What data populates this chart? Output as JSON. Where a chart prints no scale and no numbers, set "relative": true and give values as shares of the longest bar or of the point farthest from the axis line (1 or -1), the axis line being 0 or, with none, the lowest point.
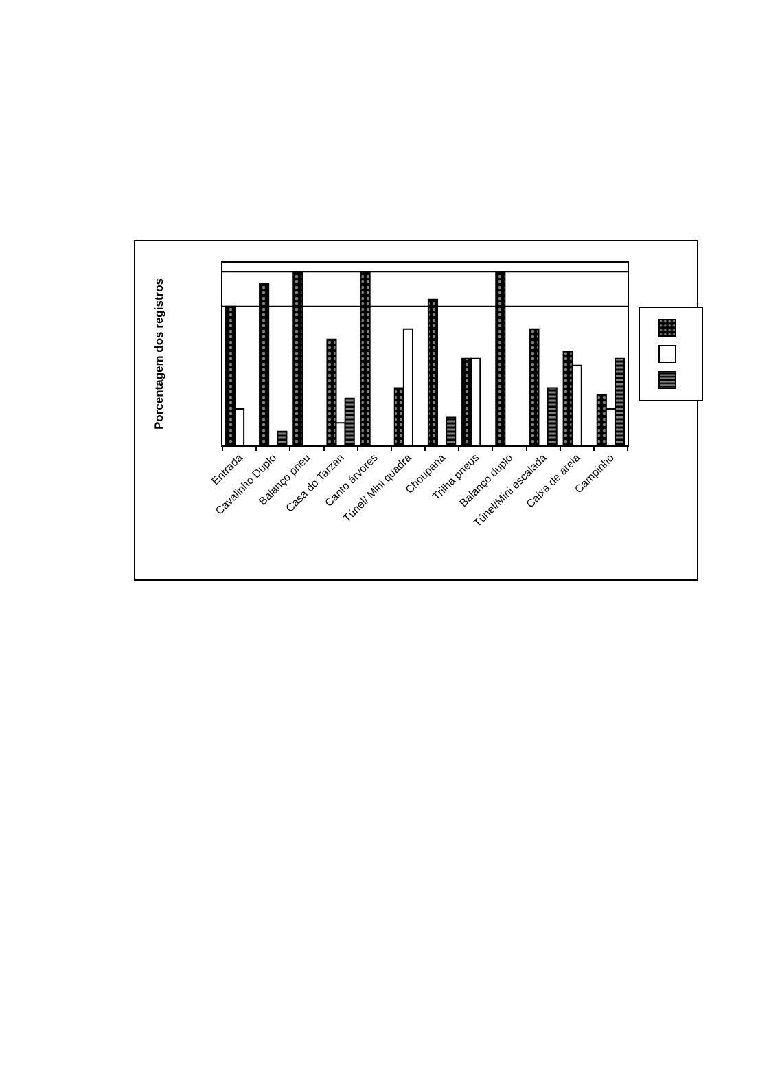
{
  "chart_data": {
    "type": "bar",
    "ylabel": "Porcentagem dos registros",
    "categories": [
      "Entrada",
      "Cavalinho Duplo",
      "Balanço pneu",
      "Casa do Tarzan",
      "Canto árvores",
      "Túnel/ Mini quadra",
      "Choupana",
      "Trilha pneus",
      "Balanço duplo",
      "Túnel/Mini escalada",
      "Caixa de areia",
      "Campinho"
    ],
    "relative": true,
    "ref_lines": [
      {
        "axis": "y",
        "value": 0.8,
        "color": "#000000"
      },
      {
        "axis": "y",
        "value": 1.0,
        "color": "#000000"
      }
    ],
    "series": [
      {
        "color": "#000000",
        "values": [
          0.8,
          0.93,
          1,
          0.61,
          1,
          0.33,
          0.84,
          0.5,
          1,
          0.67,
          0.54,
          0.29
        ]
      },
      {
        "color": "#ffffff",
        "values": [
          0.21,
          null,
          null,
          0.13,
          null,
          0.67,
          null,
          0.5,
          null,
          null,
          0.46,
          0.21
        ]
      },
      {
        "color": "#000000",
        "values": [
          null,
          0.08,
          null,
          0.27,
          null,
          null,
          0.16,
          null,
          null,
          0.33,
          null,
          0.5
        ]
      }
    ]
  }
}
